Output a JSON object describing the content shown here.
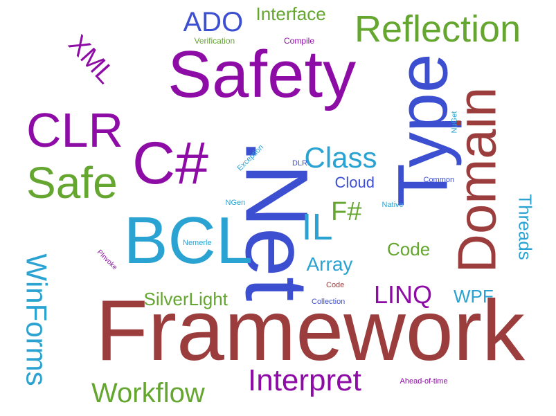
{
  "palette": {
    "purple": "#8e0ca6",
    "blue": "#3d4fd1",
    "green": "#65a630",
    "maroon": "#9b3d3d",
    "cyan": "#2aa3d2",
    "background": "#ffffff"
  },
  "words": [
    {
      "text": "Framework",
      "color": "maroon"
    },
    {
      "text": "Safety",
      "color": "purple"
    },
    {
      "text": ".Net",
      "color": "blue"
    },
    {
      "text": "Type",
      "color": "blue"
    },
    {
      "text": "BCL",
      "color": "cyan"
    },
    {
      "text": "C#",
      "color": "purple"
    },
    {
      "text": "Domain",
      "color": "maroon"
    },
    {
      "text": "CLR",
      "color": "purple"
    },
    {
      "text": "Safe",
      "color": "green"
    },
    {
      "text": "Reflection",
      "color": "green"
    },
    {
      "text": "WinForms",
      "color": "cyan"
    },
    {
      "text": "Interpret",
      "color": "purple"
    },
    {
      "text": "Workflow",
      "color": "green"
    },
    {
      "text": "IL",
      "color": "cyan"
    },
    {
      "text": "XML",
      "color": "purple"
    },
    {
      "text": "ADO",
      "color": "blue"
    },
    {
      "text": "Class",
      "color": "cyan"
    },
    {
      "text": "LINQ",
      "color": "purple"
    },
    {
      "text": "F#",
      "color": "green"
    },
    {
      "text": "Interface",
      "color": "green"
    },
    {
      "text": "Threads",
      "color": "cyan"
    },
    {
      "text": "SilverLight",
      "color": "green"
    },
    {
      "text": "Array",
      "color": "cyan"
    },
    {
      "text": "Code",
      "color": "green"
    },
    {
      "text": "WPF",
      "color": "cyan"
    },
    {
      "text": "Cloud",
      "color": "blue"
    },
    {
      "text": "Verification",
      "color": "green"
    },
    {
      "text": "Compile",
      "color": "purple"
    },
    {
      "text": "Exception",
      "color": "cyan"
    },
    {
      "text": "DLR",
      "color": "blue"
    },
    {
      "text": "Common",
      "color": "blue"
    },
    {
      "text": "NuGet",
      "color": "cyan"
    },
    {
      "text": "Native",
      "color": "cyan"
    },
    {
      "text": "NGen",
      "color": "cyan"
    },
    {
      "text": "Nemerle",
      "color": "cyan"
    },
    {
      "text": "PInvoke",
      "color": "purple"
    },
    {
      "text": "Code",
      "color": "maroon"
    },
    {
      "text": "Collection",
      "color": "blue"
    },
    {
      "text": "Ahead-of-time",
      "color": "purple"
    }
  ]
}
